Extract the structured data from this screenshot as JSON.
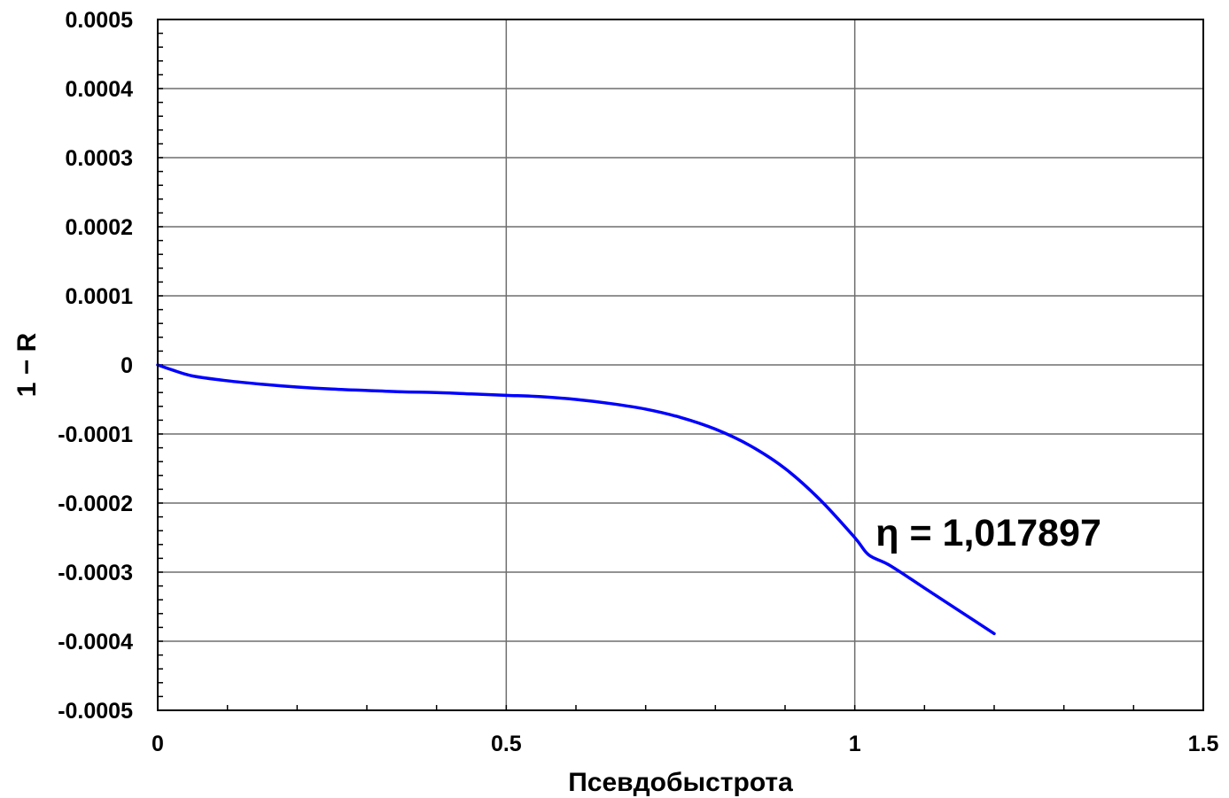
{
  "chart_data": {
    "type": "line",
    "title": "",
    "xlabel": "Псевдобыстрота",
    "ylabel": "1 − R",
    "xlim": [
      0,
      1.5
    ],
    "ylim": [
      -0.0005,
      0.0005
    ],
    "grid": true,
    "x_ticks": [
      0,
      0.5,
      1,
      1.5
    ],
    "x_tick_labels": [
      "0",
      "0.5",
      "1",
      "1.5"
    ],
    "y_ticks": [
      0.0005,
      0.0004,
      0.0003,
      0.0002,
      0.0001,
      0,
      -0.0001,
      -0.0002,
      -0.0003,
      -0.0004,
      -0.0005
    ],
    "y_tick_labels": [
      "0.0005",
      "0.0004",
      "0.0003",
      "0.0002",
      "0.0001",
      "0",
      "-0.0001",
      "-0.0002",
      "-0.0003",
      "-0.0004",
      "-0.0005"
    ],
    "series": [
      {
        "color": "#0000ff",
        "x": [
          0,
          0.02,
          0.05,
          0.1,
          0.15,
          0.2,
          0.25,
          0.3,
          0.35,
          0.4,
          0.45,
          0.5,
          0.55,
          0.6,
          0.65,
          0.7,
          0.75,
          0.8,
          0.85,
          0.9,
          0.95,
          1.0,
          1.02,
          1.05,
          1.1,
          1.15,
          1.2
        ],
        "y": [
          0,
          -7e-06,
          -1.6e-05,
          -2.3e-05,
          -2.8e-05,
          -3.2e-05,
          -3.5e-05,
          -3.7e-05,
          -3.9e-05,
          -4e-05,
          -4.2e-05,
          -4.4e-05,
          -4.6e-05,
          -5e-05,
          -5.6e-05,
          -6.4e-05,
          -7.6e-05,
          -9.3e-05,
          -0.000117,
          -0.00015,
          -0.000195,
          -0.00025,
          -0.000275,
          -0.00029,
          -0.000323,
          -0.000356,
          -0.000389
        ]
      }
    ],
    "annotations": [
      {
        "text": "η = 1,017897",
        "x": 1.03,
        "y": -0.000242
      }
    ]
  }
}
